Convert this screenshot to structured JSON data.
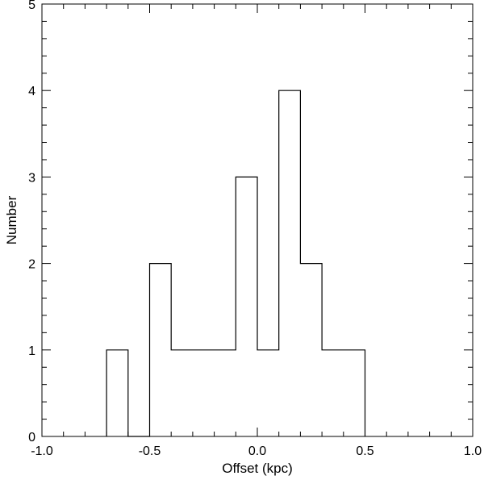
{
  "chart_data": {
    "type": "bar",
    "subtype": "step-histogram",
    "xlabel": "Offset (kpc)",
    "ylabel": "Number",
    "xlim": [
      -1.0,
      1.0
    ],
    "ylim": [
      0,
      5
    ],
    "bin_width": 0.1,
    "bins": [
      {
        "left": -0.7,
        "right": -0.6,
        "count": 1
      },
      {
        "left": -0.6,
        "right": -0.5,
        "count": 0
      },
      {
        "left": -0.5,
        "right": -0.4,
        "count": 2
      },
      {
        "left": -0.4,
        "right": -0.3,
        "count": 1
      },
      {
        "left": -0.3,
        "right": -0.2,
        "count": 1
      },
      {
        "left": -0.2,
        "right": -0.1,
        "count": 1
      },
      {
        "left": -0.1,
        "right": 0.0,
        "count": 3
      },
      {
        "left": 0.0,
        "right": 0.1,
        "count": 1
      },
      {
        "left": 0.1,
        "right": 0.2,
        "count": 4
      },
      {
        "left": 0.2,
        "right": 0.3,
        "count": 2
      },
      {
        "left": 0.3,
        "right": 0.4,
        "count": 1
      },
      {
        "left": 0.4,
        "right": 0.5,
        "count": 1
      }
    ],
    "x_ticks": [
      {
        "value": -1.0,
        "label": "-1.0"
      },
      {
        "value": -0.5,
        "label": "-0.5"
      },
      {
        "value": 0.0,
        "label": "0.0"
      },
      {
        "value": 0.5,
        "label": "0.5"
      },
      {
        "value": 1.0,
        "label": "1.0"
      }
    ],
    "x_minor_step": 0.1,
    "y_ticks": [
      {
        "value": 0,
        "label": "0"
      },
      {
        "value": 1,
        "label": "1"
      },
      {
        "value": 2,
        "label": "2"
      },
      {
        "value": 3,
        "label": "3"
      },
      {
        "value": 4,
        "label": "4"
      },
      {
        "value": 5,
        "label": "5"
      }
    ],
    "y_minor_step": 0.2,
    "grid": false,
    "legend": "none"
  }
}
